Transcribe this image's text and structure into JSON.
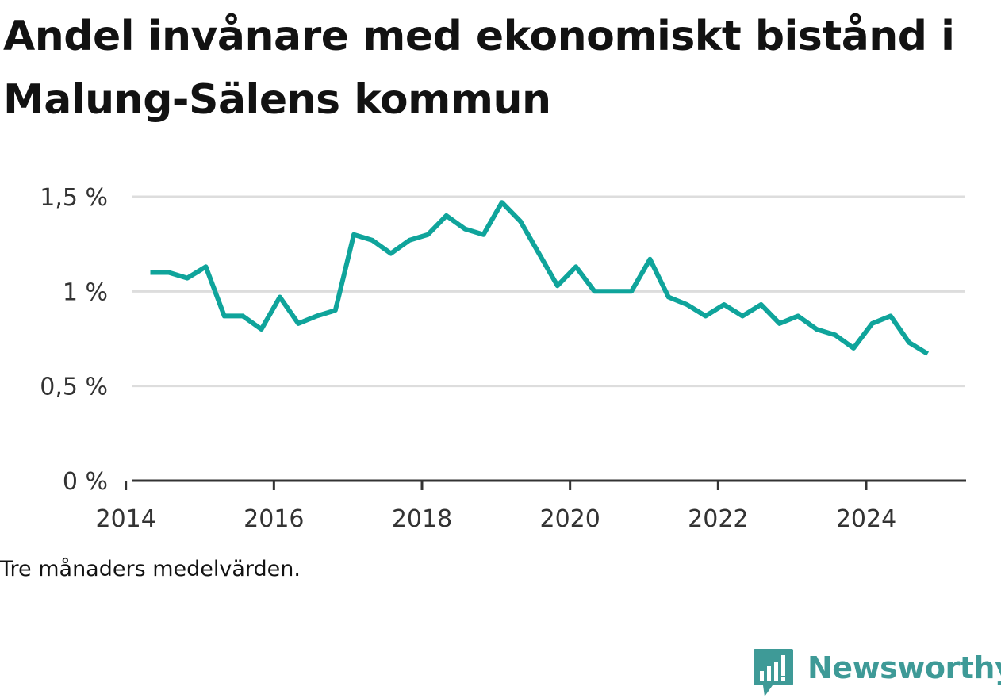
{
  "title": "Andel invånare med ekonomiskt bistånd i Malung-Sälens kommun",
  "note": "Tre månaders medelvärden.",
  "brand": {
    "name": "Newsworthy",
    "icon": "newsworthy-logo-icon",
    "color": "#3e9a97"
  },
  "chart_data": {
    "type": "line",
    "title": "Andel invånare med ekonomiskt bistånd i Malung-Sälens kommun",
    "xlabel": "",
    "ylabel": "",
    "xlim": [
      2013.8,
      2025.35
    ],
    "ylim": [
      0,
      1.5
    ],
    "xticks": [
      2014,
      2016,
      2018,
      2020,
      2022,
      2024
    ],
    "xtick_labels": [
      "2014",
      "2016",
      "2018",
      "2020",
      "2022",
      "2024"
    ],
    "yticks": [
      0,
      0.5,
      1,
      1.5
    ],
    "ytick_labels": [
      "0 %",
      "0,5 %",
      "1 %",
      "1,5 %"
    ],
    "grid": "horizontal",
    "color": "#0fa49b",
    "series": [
      {
        "name": "",
        "x": [
          2014.33,
          2014.58,
          2014.83,
          2015.08,
          2015.33,
          2015.58,
          2015.83,
          2016.08,
          2016.33,
          2016.58,
          2016.83,
          2017.08,
          2017.33,
          2017.58,
          2017.83,
          2018.08,
          2018.33,
          2018.58,
          2018.83,
          2019.08,
          2019.33,
          2019.58,
          2019.83,
          2020.08,
          2020.33,
          2020.58,
          2020.83,
          2021.08,
          2021.33,
          2021.58,
          2021.83,
          2022.08,
          2022.33,
          2022.58,
          2022.83,
          2023.08,
          2023.33,
          2023.58,
          2023.83,
          2024.08,
          2024.33,
          2024.58,
          2024.83
        ],
        "values": [
          1.1,
          1.1,
          1.07,
          1.13,
          0.87,
          0.87,
          0.8,
          0.97,
          0.83,
          0.87,
          0.9,
          1.3,
          1.27,
          1.2,
          1.27,
          1.3,
          1.4,
          1.33,
          1.3,
          1.47,
          1.37,
          1.2,
          1.03,
          1.13,
          1.0,
          1.0,
          1.0,
          1.17,
          0.97,
          0.93,
          0.87,
          0.93,
          0.87,
          0.93,
          0.83,
          0.87,
          0.8,
          0.77,
          0.7,
          0.83,
          0.87,
          0.73,
          0.67
        ]
      }
    ]
  }
}
